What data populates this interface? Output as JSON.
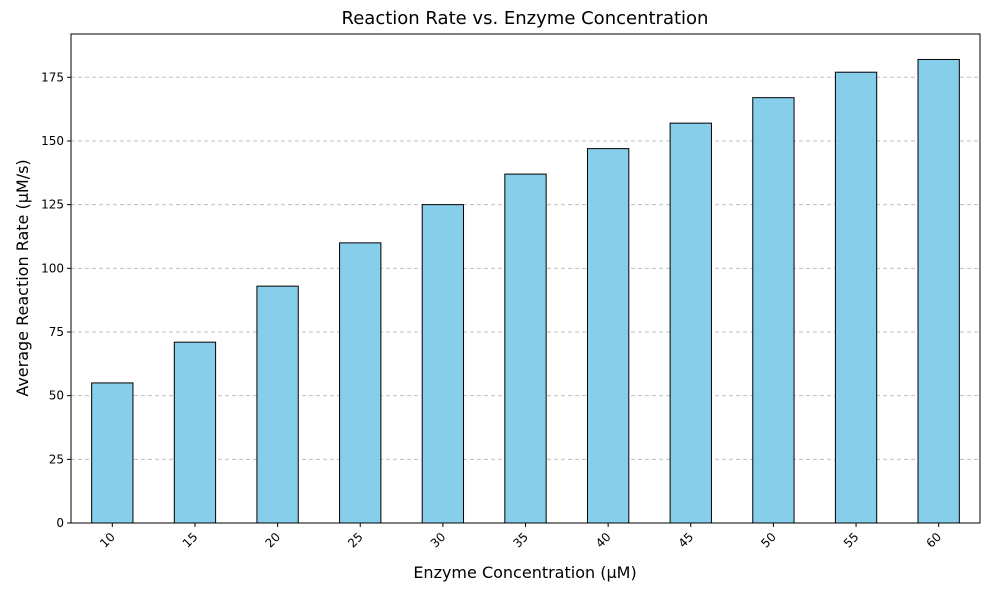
{
  "chart_data": {
    "type": "bar",
    "title": "Reaction Rate vs. Enzyme Concentration",
    "xlabel": "Enzyme Concentration (µM)",
    "ylabel": "Average Reaction Rate (µM/s)",
    "categories": [
      "10",
      "15",
      "20",
      "25",
      "30",
      "35",
      "40",
      "45",
      "50",
      "55",
      "60"
    ],
    "values": [
      55,
      71,
      93,
      110,
      125,
      137,
      147,
      157,
      167,
      177,
      182
    ],
    "ylim": [
      0,
      192
    ],
    "yticks": [
      0,
      25,
      50,
      75,
      100,
      125,
      150,
      175
    ],
    "grid": "horizontal-dashed",
    "bar_color": "#87CEEB",
    "edge_color": "#000000",
    "grid_color": "#c0c0c0"
  }
}
